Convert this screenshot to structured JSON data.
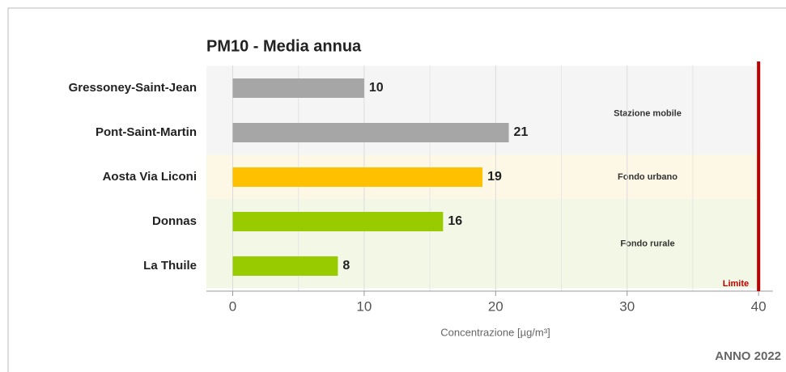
{
  "chart_data": {
    "type": "bar",
    "orientation": "horizontal",
    "title": "PM10 - Media annua",
    "categories": [
      "Gressoney-Saint-Jean",
      "Pont-Saint-Martin",
      "Aosta Via Liconi",
      "Donnas",
      "La Thuile"
    ],
    "values": [
      10,
      21,
      19,
      16,
      8
    ],
    "colors": [
      "#a6a6a6",
      "#a6a6a6",
      "#ffc000",
      "#99cc00",
      "#99cc00"
    ],
    "groups": [
      {
        "label": "Stazione mobile",
        "first": 0,
        "last": 1,
        "color": "#f5f5f5"
      },
      {
        "label": "Fondo urbano",
        "first": 2,
        "last": 2,
        "color": "#fdf7e6"
      },
      {
        "label": "Fondo rurale",
        "first": 3,
        "last": 4,
        "color": "#f3f8e6"
      }
    ],
    "xlim": [
      -2,
      41.1
    ],
    "xticks": [
      0,
      10,
      20,
      30,
      40
    ],
    "minor_xticks": [
      5,
      15,
      25,
      35
    ],
    "grid": true,
    "xlabel": "Concentrazione [µg/m³]",
    "limit": {
      "value": 40,
      "label": "Limite",
      "color": "#c00000"
    },
    "footer": "ANNO 2022"
  }
}
